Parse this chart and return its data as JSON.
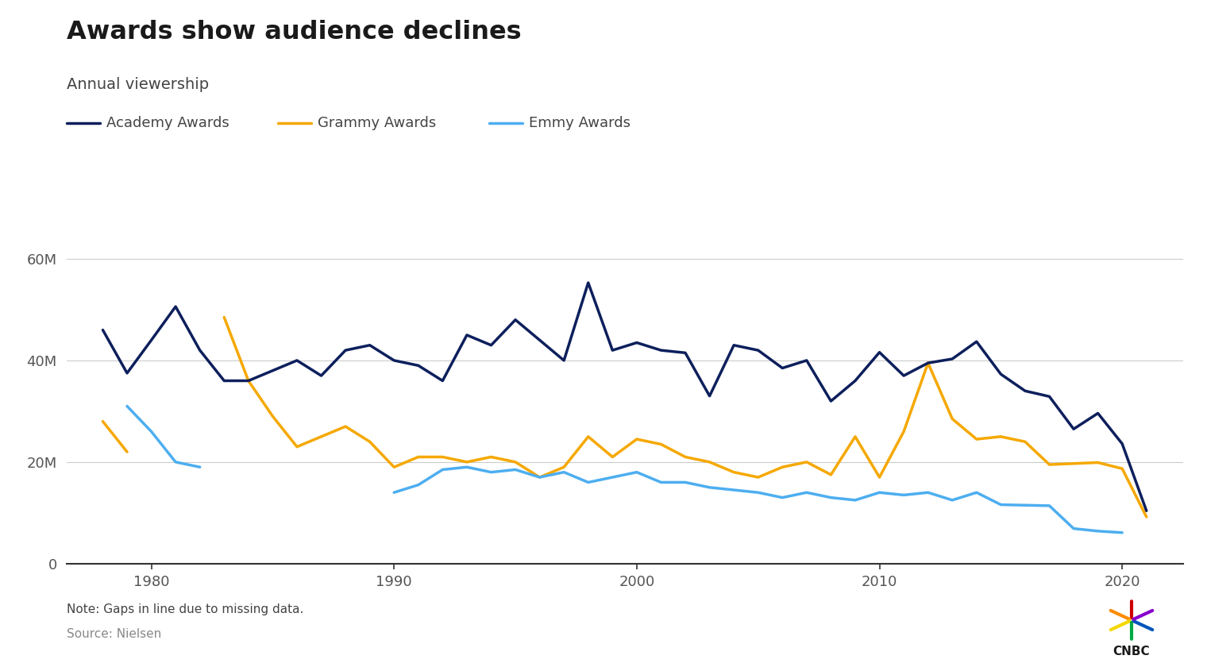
{
  "title": "Awards show audience declines",
  "subtitle": "Annual viewership",
  "note": "Note: Gaps in line due to missing data.",
  "source": "Source: Nielsen",
  "academy_color": "#0d1f5c",
  "grammy_color": "#f5a800",
  "emmy_color": "#4daef0",
  "background_color": "#ffffff",
  "ylim": [
    0,
    65000000
  ],
  "yticks": [
    0,
    20000000,
    40000000,
    60000000
  ],
  "ytick_labels": [
    "0",
    "20M",
    "40M",
    "60M"
  ],
  "academy_data": {
    "years": [
      1978,
      1979,
      1980,
      1981,
      1982,
      1983,
      1984,
      1985,
      1986,
      1987,
      1988,
      1989,
      1990,
      1991,
      1992,
      1993,
      1994,
      1995,
      1996,
      1997,
      1998,
      1999,
      2000,
      2001,
      2002,
      2003,
      2004,
      2005,
      2006,
      2007,
      2008,
      2009,
      2010,
      2011,
      2012,
      2013,
      2014,
      2015,
      2016,
      2017,
      2018,
      2019,
      2020,
      2021
    ],
    "values": [
      46000000,
      37500000,
      44000000,
      50600000,
      42000000,
      36000000,
      36000000,
      38000000,
      40000000,
      37000000,
      42000000,
      43000000,
      40000000,
      39000000,
      36000000,
      45000000,
      43000000,
      48000000,
      44000000,
      40000000,
      55300000,
      42000000,
      43500000,
      42000000,
      41500000,
      33000000,
      43000000,
      42000000,
      38500000,
      40000000,
      32000000,
      36000000,
      41600000,
      37000000,
      39500000,
      40300000,
      43700000,
      37300000,
      34000000,
      32900000,
      26500000,
      29600000,
      23600000,
      10400000
    ]
  },
  "grammy_data": {
    "years": [
      1978,
      1979,
      1980,
      1981,
      1982,
      1983,
      1984,
      1985,
      1986,
      1987,
      1988,
      1989,
      1990,
      1991,
      1992,
      1993,
      1994,
      1995,
      1996,
      1997,
      1998,
      1999,
      2000,
      2001,
      2002,
      2003,
      2004,
      2005,
      2006,
      2007,
      2008,
      2009,
      2010,
      2011,
      2012,
      2013,
      2014,
      2015,
      2016,
      2017,
      2018,
      2019,
      2020,
      2021
    ],
    "values": [
      28000000,
      22000000,
      null,
      null,
      null,
      48500000,
      36000000,
      29000000,
      23000000,
      25000000,
      27000000,
      24000000,
      19000000,
      21000000,
      21000000,
      20000000,
      21000000,
      20000000,
      17000000,
      19000000,
      25000000,
      21000000,
      24500000,
      23500000,
      21000000,
      20000000,
      18000000,
      17000000,
      19000000,
      20000000,
      17500000,
      25000000,
      17000000,
      26000000,
      39500000,
      28500000,
      24500000,
      25000000,
      24000000,
      19500000,
      19700000,
      19900000,
      18700000,
      9200000
    ]
  },
  "emmy_data": {
    "years": [
      1979,
      1980,
      1981,
      1982,
      1983,
      1984,
      1985,
      1986,
      1987,
      1988,
      1989,
      1990,
      1991,
      1992,
      1993,
      1994,
      1995,
      1996,
      1997,
      1998,
      1999,
      2000,
      2001,
      2002,
      2003,
      2004,
      2005,
      2006,
      2007,
      2008,
      2009,
      2010,
      2011,
      2012,
      2013,
      2014,
      2015,
      2016,
      2017,
      2018,
      2019,
      2020
    ],
    "values": [
      31000000,
      26000000,
      20000000,
      19000000,
      null,
      null,
      null,
      null,
      null,
      null,
      null,
      14000000,
      15500000,
      18500000,
      19000000,
      18000000,
      18500000,
      17000000,
      18000000,
      16000000,
      17000000,
      18000000,
      16000000,
      16000000,
      15000000,
      14500000,
      14000000,
      13000000,
      14000000,
      13000000,
      12500000,
      14000000,
      13500000,
      14000000,
      12500000,
      14000000,
      11600000,
      11500000,
      11400000,
      6900000,
      6400000,
      6100000
    ]
  },
  "legend_entries": [
    "Academy Awards",
    "Grammy Awards",
    "Emmy Awards"
  ],
  "legend_colors": [
    "#0d1f5c",
    "#f5a800",
    "#4daef0"
  ],
  "xlim": [
    1976.5,
    2022.5
  ],
  "xticks": [
    1980,
    1990,
    2000,
    2010,
    2020
  ],
  "xtick_labels": [
    "1980",
    "1990",
    "2000",
    "2010",
    "2020"
  ]
}
